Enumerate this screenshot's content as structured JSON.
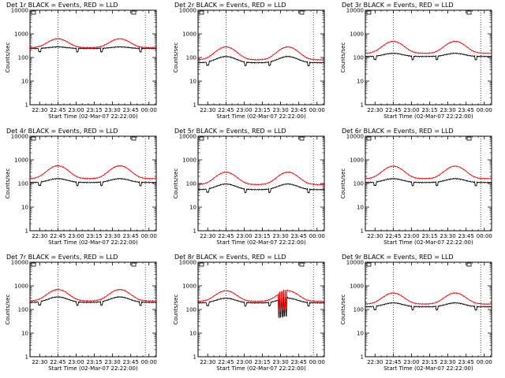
{
  "figure": {
    "colors": {
      "events": "#000000",
      "lld": "#ff0000",
      "axes": "#000000",
      "background": "#ffffff"
    }
  },
  "chart_data": [
    {
      "type": "line",
      "title": "Det 1r BLACK = Events, RED = LLD",
      "xlabel": "Start Time (02-Mar-07 22:22:00)",
      "ylabel": "Counts/sec",
      "x_ticks": [
        "22:30",
        "22:45",
        "23:00",
        "23:15",
        "23:30",
        "23:45",
        "00:00"
      ],
      "y_ticks": [
        "1",
        "10",
        "100",
        "1000",
        "10000"
      ],
      "ylim": [
        1,
        10000
      ],
      "yscale": "log",
      "x_range_minutes": [
        0,
        104
      ],
      "vlines_minutes": [
        23,
        95
      ],
      "series": [
        {
          "name": "Events",
          "color": "#000000",
          "base": 240,
          "peak": 280,
          "dips": true
        },
        {
          "name": "LLD",
          "color": "#ff0000",
          "base": 260,
          "peak": 620
        }
      ]
    },
    {
      "type": "line",
      "title": "Det 2r BLACK = Events, RED = LLD",
      "xlabel": "Start Time (02-Mar-07 22:22:00)",
      "ylabel": "Counts/sec",
      "x_ticks": [
        "22:30",
        "22:45",
        "23:00",
        "23:15",
        "23:30",
        "23:45",
        "00:00"
      ],
      "y_ticks": [
        "1",
        "10",
        "100",
        "1000",
        "10000"
      ],
      "ylim": [
        1,
        10000
      ],
      "yscale": "log",
      "x_range_minutes": [
        0,
        104
      ],
      "vlines_minutes": [
        23,
        95
      ],
      "series": [
        {
          "name": "Events",
          "color": "#000000",
          "base": 60,
          "peak": 110,
          "dips": true
        },
        {
          "name": "LLD",
          "color": "#ff0000",
          "base": 80,
          "peak": 280
        }
      ]
    },
    {
      "type": "line",
      "title": "Det 3r BLACK = Events, RED = LLD",
      "xlabel": "Start Time (02-Mar-07 22:22:00)",
      "ylabel": "Counts/sec",
      "x_ticks": [
        "22:30",
        "22:45",
        "23:00",
        "23:15",
        "23:30",
        "23:45",
        "00:00"
      ],
      "y_ticks": [
        "1",
        "10",
        "100",
        "1000",
        "10000"
      ],
      "ylim": [
        1,
        10000
      ],
      "yscale": "log",
      "x_range_minutes": [
        0,
        104
      ],
      "vlines_minutes": [
        23,
        95
      ],
      "series": [
        {
          "name": "Events",
          "color": "#000000",
          "base": 110,
          "peak": 150,
          "dips": true
        },
        {
          "name": "LLD",
          "color": "#ff0000",
          "base": 150,
          "peak": 480
        }
      ]
    },
    {
      "type": "line",
      "title": "Det 4r BLACK = Events, RED = LLD",
      "xlabel": "Start Time (02-Mar-07 22:22:00)",
      "ylabel": "Counts/sec",
      "x_ticks": [
        "22:30",
        "22:45",
        "23:00",
        "23:15",
        "23:30",
        "23:45",
        "00:00"
      ],
      "y_ticks": [
        "1",
        "10",
        "100",
        "1000",
        "10000"
      ],
      "ylim": [
        1,
        10000
      ],
      "yscale": "log",
      "x_range_minutes": [
        0,
        104
      ],
      "vlines_minutes": [
        23,
        95
      ],
      "series": [
        {
          "name": "Events",
          "color": "#000000",
          "base": 110,
          "peak": 160,
          "dips": true
        },
        {
          "name": "LLD",
          "color": "#ff0000",
          "base": 160,
          "peak": 560
        }
      ]
    },
    {
      "type": "line",
      "title": "Det 5r BLACK = Events, RED = LLD",
      "xlabel": "Start Time (02-Mar-07 22:22:00)",
      "ylabel": "Counts/sec",
      "x_ticks": [
        "22:30",
        "22:45",
        "23:00",
        "23:15",
        "23:30",
        "23:45",
        "00:00"
      ],
      "y_ticks": [
        "1",
        "10",
        "100",
        "1000",
        "10000"
      ],
      "ylim": [
        1,
        10000
      ],
      "yscale": "log",
      "x_range_minutes": [
        0,
        104
      ],
      "vlines_minutes": [
        23,
        95
      ],
      "series": [
        {
          "name": "Events",
          "color": "#000000",
          "base": 55,
          "peak": 95,
          "dips": true
        },
        {
          "name": "LLD",
          "color": "#ff0000",
          "base": 90,
          "peak": 300
        }
      ]
    },
    {
      "type": "line",
      "title": "Det 6r BLACK = Events, RED = LLD",
      "xlabel": "Start Time (02-Mar-07 22:22:00)",
      "ylabel": "Counts/sec",
      "x_ticks": [
        "22:30",
        "22:45",
        "23:00",
        "23:15",
        "23:30",
        "23:45",
        "00:00"
      ],
      "y_ticks": [
        "1",
        "10",
        "100",
        "1000",
        "10000"
      ],
      "ylim": [
        1,
        10000
      ],
      "yscale": "log",
      "x_range_minutes": [
        0,
        104
      ],
      "vlines_minutes": [
        23,
        95
      ],
      "series": [
        {
          "name": "Events",
          "color": "#000000",
          "base": 110,
          "peak": 160,
          "dips": true
        },
        {
          "name": "LLD",
          "color": "#ff0000",
          "base": 160,
          "peak": 540
        }
      ]
    },
    {
      "type": "line",
      "title": "Det 7r BLACK = Events, RED = LLD",
      "xlabel": "Start Time (02-Mar-07 22:22:00)",
      "ylabel": "Counts/sec",
      "x_ticks": [
        "22:30",
        "22:45",
        "23:00",
        "23:15",
        "23:30",
        "23:45",
        "00:00"
      ],
      "y_ticks": [
        "1",
        "10",
        "100",
        "1000",
        "10000"
      ],
      "ylim": [
        1,
        10000
      ],
      "yscale": "log",
      "x_range_minutes": [
        0,
        104
      ],
      "vlines_minutes": [
        23,
        95
      ],
      "series": [
        {
          "name": "Events",
          "color": "#000000",
          "base": 200,
          "peak": 340,
          "dips": true
        },
        {
          "name": "LLD",
          "color": "#ff0000",
          "base": 230,
          "peak": 700
        }
      ]
    },
    {
      "type": "line",
      "title": "Det 8r BLACK = Events, RED = LLD",
      "xlabel": "Start Time (02-Mar-07 22:22:00)",
      "ylabel": "Counts/sec",
      "x_ticks": [
        "22:30",
        "22:45",
        "23:00",
        "23:15",
        "23:30",
        "23:45",
        "00:00"
      ],
      "y_ticks": [
        "1",
        "10",
        "100",
        "1000",
        "10000"
      ],
      "ylim": [
        1,
        10000
      ],
      "yscale": "log",
      "x_range_minutes": [
        0,
        104
      ],
      "vlines_minutes": [
        23,
        95
      ],
      "series": [
        {
          "name": "Events",
          "color": "#000000",
          "base": 190,
          "peak": 300,
          "dips": true,
          "spikes": true
        },
        {
          "name": "LLD",
          "color": "#ff0000",
          "base": 220,
          "peak": 620,
          "spikes": true
        }
      ]
    },
    {
      "type": "line",
      "title": "Det 9r BLACK = Events, RED = LLD",
      "xlabel": "Start Time (02-Mar-07 22:22:00)",
      "ylabel": "Counts/sec",
      "x_ticks": [
        "22:30",
        "22:45",
        "23:00",
        "23:15",
        "23:30",
        "23:45",
        "00:00"
      ],
      "y_ticks": [
        "1",
        "10",
        "100",
        "1000",
        "10000"
      ],
      "ylim": [
        1,
        10000
      ],
      "yscale": "log",
      "x_range_minutes": [
        0,
        104
      ],
      "vlines_minutes": [
        23,
        95
      ],
      "series": [
        {
          "name": "Events",
          "color": "#000000",
          "base": 130,
          "peak": 190,
          "dips": true
        },
        {
          "name": "LLD",
          "color": "#ff0000",
          "base": 170,
          "peak": 500
        }
      ]
    }
  ]
}
